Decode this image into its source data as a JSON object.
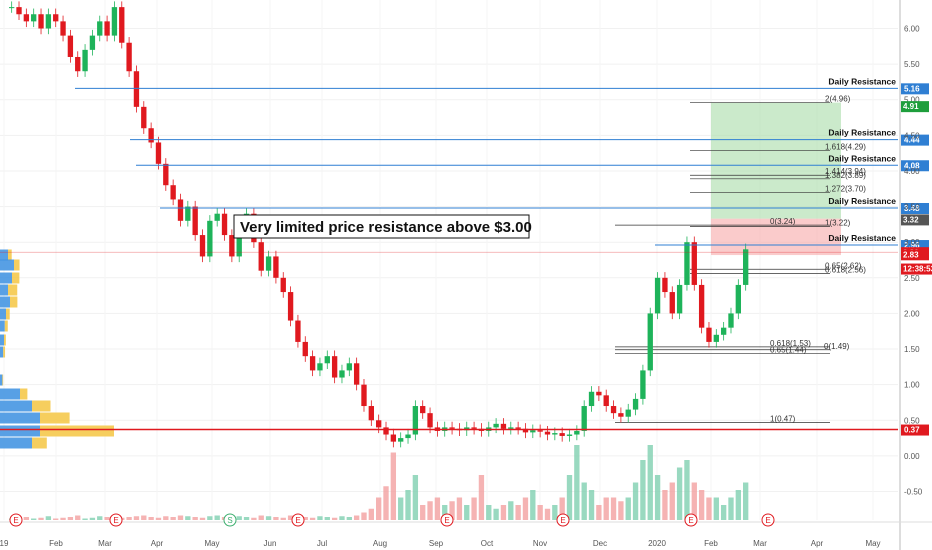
{
  "chart_data": {
    "type": "candlestick",
    "ylim": [
      -0.9,
      6.4
    ],
    "y_ticks": [
      "6.00",
      "5.50",
      "5.00",
      "4.50",
      "4.00",
      "3.50",
      "3.00",
      "2.50",
      "2.00",
      "1.50",
      "1.00",
      "0.50",
      "0.00",
      "-0.50"
    ],
    "x_ticks": [
      "19",
      "Feb",
      "Mar",
      "Apr",
      "May",
      "Jun",
      "Jul",
      "Aug",
      "Sep",
      "Oct",
      "Nov",
      "Dec",
      "2020",
      "Feb",
      "Mar",
      "Apr",
      "May"
    ],
    "annotation": "Very limited price resistance above $3.00",
    "resistance_levels": [
      {
        "label": "Daily Resistance",
        "price": 5.16,
        "badge": "5.16",
        "color": "#2f7fd3"
      },
      {
        "label": "Daily Resistance",
        "price": 4.44,
        "badge": "4.44",
        "color": "#2f7fd3"
      },
      {
        "label": "Daily Resistance",
        "price": 4.08,
        "badge": "4.08",
        "color": "#2f7fd3"
      },
      {
        "label": "Daily Resistance",
        "price": 3.48,
        "badge": "3.48",
        "color": "#2f7fd3"
      },
      {
        "label": "Daily Resistance",
        "price": 2.96,
        "badge": "2.96",
        "color": "#2f7fd3"
      }
    ],
    "support_level": {
      "price": 0.37,
      "badge": "0.37",
      "color": "#e0191f"
    },
    "price_badges": [
      {
        "price": 4.91,
        "text": "4.91",
        "color": "#1e9e3c"
      },
      {
        "price": 3.32,
        "text": "3.32",
        "color": "#555555"
      },
      {
        "price": 2.86,
        "text": "2.86",
        "color": "#e0191f"
      },
      {
        "price": 2.83,
        "text": "2.83",
        "color": "#e0191f"
      },
      {
        "price": 2.63,
        "text": "12:38:53",
        "color": "#e0191f"
      }
    ],
    "fib_upper": [
      {
        "label": "2(4.96)",
        "price": 4.96
      },
      {
        "label": "1.618(4.29)",
        "price": 4.29
      },
      {
        "label": "1.414(3.94)",
        "price": 3.94
      },
      {
        "label": "1.382(3.89)",
        "price": 3.89
      },
      {
        "label": "1.272(3.70)",
        "price": 3.7
      },
      {
        "label": "1(3.22)",
        "price": 3.22
      },
      {
        "label": "0(3.24)",
        "price": 3.24
      },
      {
        "label": "0.65(2.62)",
        "price": 2.62
      },
      {
        "label": "0.618(2.56)",
        "price": 2.56
      }
    ],
    "fib_lower": [
      {
        "label": "0(1.49)",
        "price": 1.49
      },
      {
        "label": "0.618(1.53)",
        "price": 1.53
      },
      {
        "label": "0.65(1.44)",
        "price": 1.44
      },
      {
        "label": "1(0.47)",
        "price": 0.47
      }
    ],
    "position": {
      "target": 4.96,
      "entry": 2.96,
      "stop": 3.33
    },
    "events": [
      "E",
      "E",
      "S",
      "E",
      "E",
      "E",
      "E",
      "E"
    ],
    "prices": [
      6.3,
      6.2,
      6.1,
      6.2,
      6.0,
      6.2,
      6.1,
      5.9,
      5.6,
      5.4,
      5.7,
      5.9,
      6.1,
      5.9,
      6.3,
      5.8,
      5.4,
      4.9,
      4.6,
      4.4,
      4.1,
      3.8,
      3.6,
      3.3,
      3.5,
      3.1,
      2.8,
      3.3,
      3.4,
      3.1,
      2.8,
      3.2,
      3.4,
      3.0,
      2.6,
      2.8,
      2.5,
      2.3,
      1.9,
      1.6,
      1.4,
      1.2,
      1.3,
      1.4,
      1.1,
      1.2,
      1.3,
      1.0,
      0.7,
      0.5,
      0.4,
      0.3,
      0.2,
      0.25,
      0.3,
      0.7,
      0.6,
      0.4,
      0.35,
      0.4,
      0.38,
      0.36,
      0.4,
      0.38,
      0.35,
      0.4,
      0.45,
      0.38,
      0.4,
      0.38,
      0.33,
      0.36,
      0.34,
      0.3,
      0.32,
      0.28,
      0.3,
      0.35,
      0.7,
      0.9,
      0.85,
      0.7,
      0.6,
      0.55,
      0.65,
      0.8,
      1.2,
      2.0,
      2.5,
      2.3,
      2.0,
      2.4,
      3.0,
      2.4,
      1.8,
      1.6,
      1.7,
      1.8,
      2.0,
      2.4,
      2.9
    ],
    "volumes": [
      0.02,
      0.03,
      0.04,
      0.02,
      0.03,
      0.05,
      0.02,
      0.03,
      0.04,
      0.06,
      0.02,
      0.03,
      0.05,
      0.04,
      0.02,
      0.03,
      0.04,
      0.05,
      0.06,
      0.04,
      0.03,
      0.05,
      0.04,
      0.06,
      0.05,
      0.04,
      0.03,
      0.05,
      0.06,
      0.04,
      0.03,
      0.05,
      0.04,
      0.03,
      0.06,
      0.05,
      0.04,
      0.03,
      0.06,
      0.05,
      0.04,
      0.03,
      0.05,
      0.04,
      0.03,
      0.05,
      0.04,
      0.06,
      0.1,
      0.15,
      0.3,
      0.45,
      0.9,
      0.3,
      0.4,
      0.6,
      0.2,
      0.25,
      0.3,
      0.2,
      0.25,
      0.3,
      0.2,
      0.3,
      0.6,
      0.2,
      0.15,
      0.2,
      0.25,
      0.2,
      0.3,
      0.4,
      0.2,
      0.15,
      0.2,
      0.3,
      0.6,
      1.0,
      0.5,
      0.4,
      0.2,
      0.3,
      0.3,
      0.25,
      0.3,
      0.5,
      0.8,
      1.0,
      0.6,
      0.4,
      0.5,
      0.7,
      0.8,
      0.5,
      0.4,
      0.3,
      0.3,
      0.2,
      0.3,
      0.4,
      0.5
    ]
  }
}
